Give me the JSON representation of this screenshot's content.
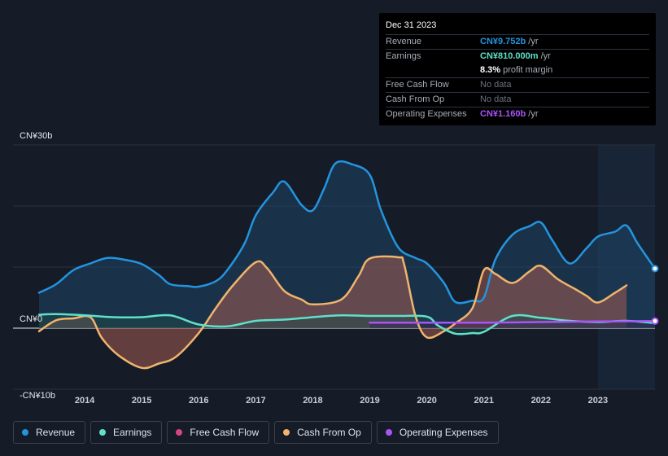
{
  "tooltip": {
    "date": "Dec 31 2023",
    "revenue": {
      "label": "Revenue",
      "value": "CN¥9.752b",
      "unit": "/yr",
      "color": "#2394df"
    },
    "earnings": {
      "label": "Earnings",
      "value": "CN¥810.000m",
      "unit": "/yr",
      "color": "#5fe0c9"
    },
    "margin": {
      "value": "8.3%",
      "unit": "profit margin"
    },
    "fcf": {
      "label": "Free Cash Flow",
      "value": "No data"
    },
    "cfo": {
      "label": "Cash From Op",
      "value": "No data"
    },
    "opex": {
      "label": "Operating Expenses",
      "value": "CN¥1.160b",
      "unit": "/yr",
      "color": "#a855f7"
    }
  },
  "legend": [
    {
      "label": "Revenue",
      "color": "#2394df"
    },
    {
      "label": "Earnings",
      "color": "#5fe0c9"
    },
    {
      "label": "Free Cash Flow",
      "color": "#d6467f"
    },
    {
      "label": "Cash From Op",
      "color": "#f0b46c"
    },
    {
      "label": "Operating Expenses",
      "color": "#a855f7"
    }
  ],
  "chart_data": {
    "type": "area",
    "title": "",
    "currency": "CN¥",
    "y_unit": "b",
    "ylim": [
      -10,
      30
    ],
    "ytick_labels": [
      "CN¥30b",
      "CN¥0",
      "-CN¥10b"
    ],
    "xlim": [
      2013.2,
      2024.0
    ],
    "xtick_labels": [
      "2014",
      "2015",
      "2016",
      "2017",
      "2018",
      "2019",
      "2020",
      "2021",
      "2022",
      "2023"
    ],
    "highlight_start": 2023.0,
    "series": [
      {
        "name": "Revenue",
        "color": "#2394df",
        "x": [
          2013.2,
          2013.5,
          2013.8,
          2014.1,
          2014.4,
          2014.7,
          2015.0,
          2015.3,
          2015.5,
          2015.8,
          2016.0,
          2016.3,
          2016.5,
          2016.8,
          2017.0,
          2017.3,
          2017.5,
          2017.8,
          2018.0,
          2018.2,
          2018.4,
          2018.7,
          2019.0,
          2019.2,
          2019.5,
          2019.8,
          2020.0,
          2020.3,
          2020.5,
          2020.8,
          2021.0,
          2021.2,
          2021.5,
          2021.8,
          2022.0,
          2022.2,
          2022.5,
          2022.8,
          2023.0,
          2023.3,
          2023.5,
          2023.7,
          2024.0
        ],
        "values": [
          5.8,
          7.2,
          9.5,
          10.6,
          11.5,
          11.2,
          10.5,
          8.7,
          7.2,
          6.9,
          6.8,
          7.7,
          9.5,
          13.8,
          18.5,
          22.2,
          24.0,
          20.2,
          19.3,
          22.9,
          27.0,
          26.8,
          25.1,
          19.2,
          13.2,
          11.5,
          10.6,
          7.4,
          4.3,
          4.5,
          5.0,
          11.2,
          15.3,
          16.7,
          17.3,
          14.4,
          10.6,
          13.1,
          15.0,
          15.8,
          16.8,
          13.8,
          9.752
        ]
      },
      {
        "name": "Earnings",
        "color": "#5fe0c9",
        "x": [
          2013.2,
          2013.5,
          2014.0,
          2014.5,
          2015.0,
          2015.5,
          2016.0,
          2016.5,
          2017.0,
          2017.5,
          2018.0,
          2018.5,
          2019.0,
          2019.5,
          2020.0,
          2020.2,
          2020.5,
          2020.8,
          2021.0,
          2021.5,
          2022.0,
          2022.5,
          2023.0,
          2023.5,
          2024.0
        ],
        "values": [
          2.2,
          2.3,
          2.1,
          1.8,
          1.8,
          2.1,
          0.6,
          0.3,
          1.2,
          1.4,
          1.8,
          2.1,
          2.0,
          2.0,
          1.9,
          0.4,
          -0.9,
          -0.8,
          -0.6,
          2.0,
          1.7,
          1.2,
          1.0,
          1.2,
          0.81
        ]
      },
      {
        "name": "Cash From Op",
        "color": "#f0b46c",
        "x": [
          2013.2,
          2013.5,
          2013.8,
          2014.1,
          2014.3,
          2014.6,
          2015.0,
          2015.3,
          2015.6,
          2016.0,
          2016.3,
          2016.6,
          2017.0,
          2017.2,
          2017.5,
          2017.8,
          2018.0,
          2018.5,
          2018.8,
          2019.0,
          2019.5,
          2019.6,
          2019.8,
          2020.0,
          2020.3,
          2020.5,
          2020.8,
          2021.0,
          2021.2,
          2021.5,
          2021.8,
          2022.0,
          2022.3,
          2022.6,
          2022.8,
          2023.0,
          2023.3,
          2023.5
        ],
        "values": [
          -0.5,
          1.3,
          1.6,
          1.8,
          -1.6,
          -4.5,
          -6.5,
          -5.8,
          -4.7,
          -0.8,
          3.3,
          7.0,
          10.8,
          9.8,
          6.1,
          4.7,
          3.9,
          4.7,
          8.5,
          11.4,
          11.6,
          10.5,
          2.0,
          -1.5,
          -0.5,
          0.8,
          3.3,
          9.5,
          8.9,
          7.4,
          9.3,
          10.2,
          8.0,
          6.4,
          5.3,
          4.2,
          5.8,
          7.0
        ]
      },
      {
        "name": "Operating Expenses",
        "color": "#a855f7",
        "x": [
          2019.0,
          2020.0,
          2021.0,
          2022.0,
          2023.0,
          2024.0
        ],
        "values": [
          0.9,
          0.9,
          0.9,
          1.0,
          1.1,
          1.16
        ]
      },
      {
        "name": "Free Cash Flow",
        "color": "#d6467f",
        "x": [],
        "values": []
      }
    ]
  }
}
